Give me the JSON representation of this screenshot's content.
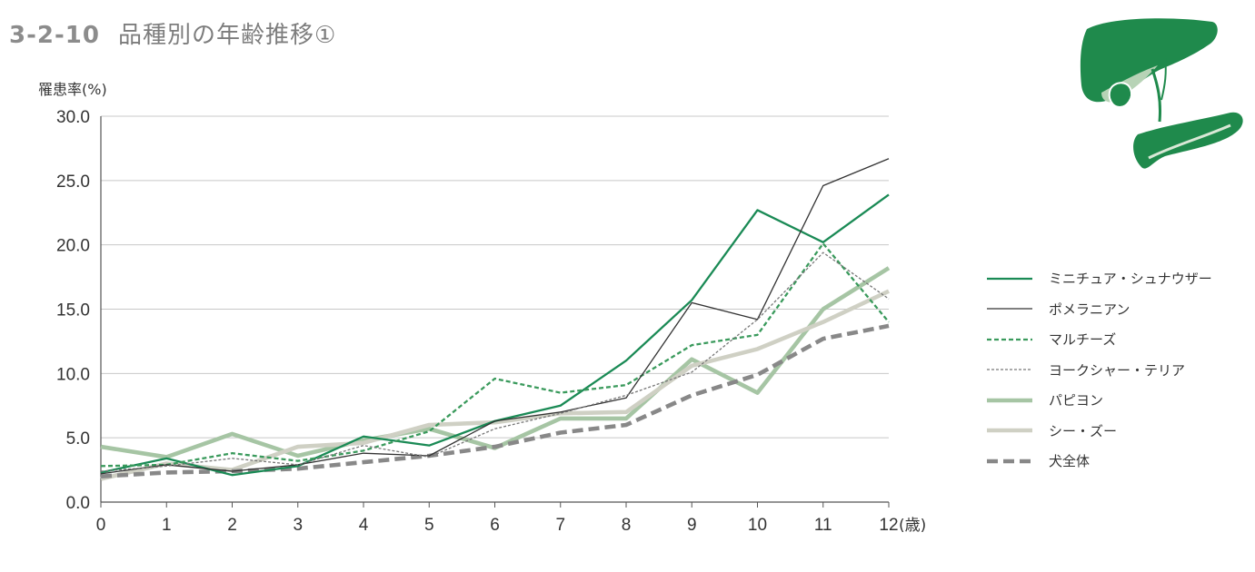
{
  "title": {
    "number": "3-2-10",
    "text": "品種別の年齢推移①"
  },
  "colors": {
    "axis": "#555555",
    "grid": "#c8c8c8",
    "tick_text": "#333333",
    "title": "#8c8c8c",
    "organ_green": "#1f8a4c",
    "organ_light": "#b7d3b6"
  },
  "illustration": {
    "icon": "liver-pancreas-icon"
  },
  "chart_data": {
    "type": "line",
    "ylabel": "罹患率(%)",
    "xunit": "(歳)",
    "x": [
      0,
      1,
      2,
      3,
      4,
      5,
      6,
      7,
      8,
      9,
      10,
      11,
      12
    ],
    "x_tick_labels": [
      "0",
      "1",
      "2",
      "3",
      "4",
      "5",
      "6",
      "7",
      "8",
      "9",
      "10",
      "11",
      "12"
    ],
    "ylim": [
      0,
      30
    ],
    "y_ticks": [
      0,
      5,
      10,
      15,
      20,
      25,
      30
    ],
    "y_tick_labels": [
      "0.0",
      "5.0",
      "10.0",
      "15.0",
      "20.0",
      "25.0",
      "30.0"
    ],
    "grid": true,
    "legend_position": "right",
    "series": [
      {
        "name": "ミニチュア・シュナウザー",
        "values": [
          2.3,
          3.4,
          2.1,
          2.8,
          5.1,
          4.4,
          6.3,
          7.5,
          11.0,
          15.7,
          22.7,
          20.2,
          23.9
        ],
        "color": "#1a8a55",
        "style": "solid",
        "weight": "medium"
      },
      {
        "name": "ポメラニアン",
        "values": [
          2.2,
          2.9,
          2.4,
          2.9,
          3.8,
          3.6,
          6.3,
          7.0,
          8.1,
          15.5,
          14.2,
          24.6,
          26.7
        ],
        "color": "#333333",
        "style": "solid",
        "weight": "thin"
      },
      {
        "name": "マルチーズ",
        "values": [
          2.8,
          2.9,
          3.8,
          3.2,
          4.0,
          5.5,
          9.6,
          8.5,
          9.1,
          12.2,
          13.0,
          20.1,
          14.0
        ],
        "color": "#3a9a5c",
        "style": "dashed",
        "weight": "medium"
      },
      {
        "name": "ヨークシャー・テリア",
        "values": [
          2.4,
          2.8,
          3.4,
          2.9,
          4.4,
          3.5,
          5.7,
          6.9,
          8.3,
          10.1,
          14.2,
          19.4,
          15.8
        ],
        "color": "#777777",
        "style": "dotted",
        "weight": "thin"
      },
      {
        "name": "パピヨン",
        "values": [
          4.3,
          3.5,
          5.3,
          3.6,
          4.8,
          5.7,
          4.2,
          6.5,
          6.5,
          11.1,
          8.5,
          15.0,
          18.2
        ],
        "color": "#a6c5a4",
        "style": "solid",
        "weight": "thick"
      },
      {
        "name": "シー・ズー",
        "values": [
          1.8,
          3.0,
          2.5,
          4.3,
          4.6,
          6.0,
          6.2,
          6.9,
          7.0,
          10.6,
          11.9,
          14.0,
          16.4
        ],
        "color": "#cfd0c4",
        "style": "solid",
        "weight": "thick"
      },
      {
        "name": "犬全体",
        "values": [
          2.0,
          2.3,
          2.4,
          2.6,
          3.1,
          3.6,
          4.3,
          5.4,
          6.0,
          8.3,
          9.9,
          12.7,
          13.7
        ],
        "color": "#888888",
        "style": "dashed",
        "weight": "thick"
      }
    ]
  }
}
